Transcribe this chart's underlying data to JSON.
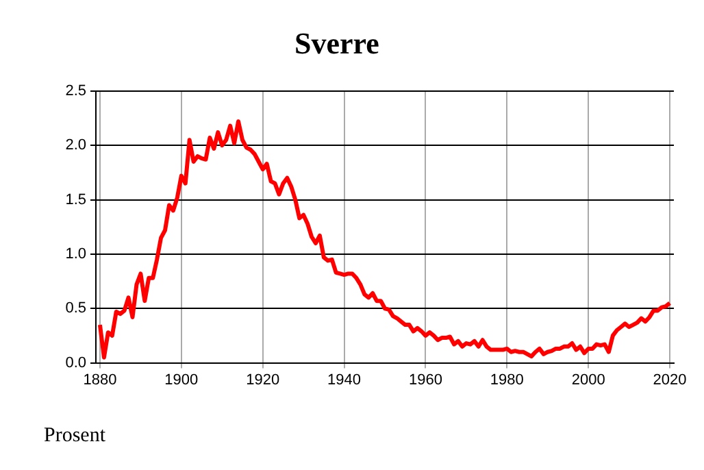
{
  "chart_data": {
    "type": "line",
    "title": "Sverre",
    "ylabel": "Prosent",
    "color": "#ff0000",
    "x": [
      1880,
      1881,
      1882,
      1883,
      1884,
      1885,
      1886,
      1887,
      1888,
      1889,
      1890,
      1891,
      1892,
      1893,
      1894,
      1895,
      1896,
      1897,
      1898,
      1899,
      1900,
      1901,
      1902,
      1903,
      1904,
      1905,
      1906,
      1907,
      1908,
      1909,
      1910,
      1911,
      1912,
      1913,
      1914,
      1915,
      1916,
      1917,
      1918,
      1919,
      1920,
      1921,
      1922,
      1923,
      1924,
      1925,
      1926,
      1927,
      1928,
      1929,
      1930,
      1931,
      1932,
      1933,
      1934,
      1935,
      1936,
      1937,
      1938,
      1939,
      1940,
      1941,
      1942,
      1943,
      1944,
      1945,
      1946,
      1947,
      1948,
      1949,
      1950,
      1951,
      1952,
      1953,
      1954,
      1955,
      1956,
      1957,
      1958,
      1959,
      1960,
      1961,
      1962,
      1963,
      1964,
      1965,
      1966,
      1967,
      1968,
      1969,
      1970,
      1971,
      1972,
      1973,
      1974,
      1975,
      1976,
      1977,
      1978,
      1979,
      1980,
      1981,
      1982,
      1983,
      1984,
      1985,
      1986,
      1987,
      1988,
      1989,
      1990,
      1991,
      1992,
      1993,
      1994,
      1995,
      1996,
      1997,
      1998,
      1999,
      2000,
      2001,
      2002,
      2003,
      2004,
      2005,
      2006,
      2007,
      2008,
      2009,
      2010,
      2011,
      2012,
      2013,
      2014,
      2015,
      2016,
      2017,
      2018,
      2019,
      2020
    ],
    "values": [
      0.35,
      0.05,
      0.28,
      0.25,
      0.47,
      0.45,
      0.48,
      0.6,
      0.42,
      0.72,
      0.82,
      0.57,
      0.78,
      0.78,
      0.95,
      1.15,
      1.22,
      1.45,
      1.4,
      1.52,
      1.72,
      1.65,
      2.05,
      1.85,
      1.9,
      1.88,
      1.87,
      2.07,
      1.97,
      2.12,
      2.0,
      2.05,
      2.18,
      2.02,
      2.22,
      2.05,
      1.98,
      1.96,
      1.92,
      1.85,
      1.78,
      1.83,
      1.67,
      1.65,
      1.55,
      1.65,
      1.7,
      1.62,
      1.5,
      1.33,
      1.36,
      1.28,
      1.16,
      1.1,
      1.17,
      0.97,
      0.94,
      0.95,
      0.83,
      0.82,
      0.81,
      0.82,
      0.82,
      0.78,
      0.72,
      0.63,
      0.6,
      0.64,
      0.57,
      0.57,
      0.5,
      0.49,
      0.43,
      0.41,
      0.38,
      0.35,
      0.35,
      0.29,
      0.32,
      0.29,
      0.25,
      0.28,
      0.25,
      0.21,
      0.23,
      0.23,
      0.24,
      0.17,
      0.2,
      0.15,
      0.18,
      0.17,
      0.2,
      0.15,
      0.21,
      0.15,
      0.12,
      0.12,
      0.12,
      0.12,
      0.13,
      0.1,
      0.11,
      0.1,
      0.1,
      0.08,
      0.06,
      0.1,
      0.13,
      0.08,
      0.1,
      0.11,
      0.13,
      0.13,
      0.15,
      0.15,
      0.18,
      0.12,
      0.15,
      0.09,
      0.13,
      0.13,
      0.17,
      0.16,
      0.17,
      0.1,
      0.25,
      0.3,
      0.33,
      0.36,
      0.33,
      0.35,
      0.37,
      0.41,
      0.38,
      0.42,
      0.48,
      0.48,
      0.51,
      0.52,
      0.55
    ],
    "xlim": [
      1879,
      2021
    ],
    "xticks": [
      1880,
      1900,
      1920,
      1940,
      1960,
      1980,
      2000,
      2020
    ],
    "ylim": [
      0,
      2.5
    ],
    "yticks": [
      {
        "value": 0,
        "label": "0.0"
      },
      0.5,
      {
        "value": 1,
        "label": "1.0"
      },
      1.5,
      {
        "value": 2,
        "label": "2.0"
      },
      2.5
    ],
    "grid": true,
    "legend": false,
    "marker": "none",
    "line_style": "solid"
  }
}
